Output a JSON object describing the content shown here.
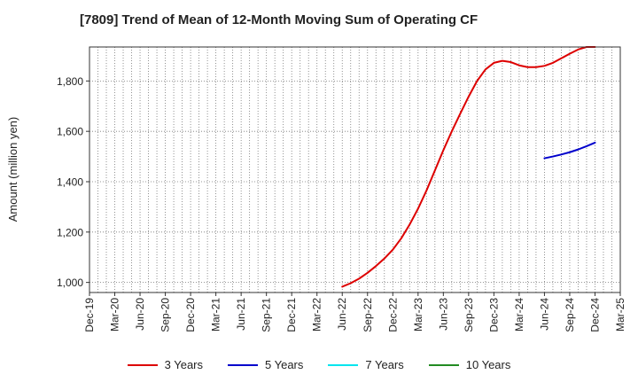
{
  "chart_data": {
    "type": "line",
    "title": "[7809]  Trend of Mean of 12-Month Moving Sum of Operating CF",
    "xlabel": "",
    "ylabel": "Amount (million yen)",
    "ylim": [
      960,
      1935
    ],
    "yticks": [
      1000,
      1200,
      1400,
      1600,
      1800
    ],
    "ytick_labels": [
      "1,000",
      "1,200",
      "1,400",
      "1,600",
      "1,800"
    ],
    "categories": [
      "Dec-19",
      "Mar-20",
      "Jun-20",
      "Sep-20",
      "Dec-20",
      "Mar-21",
      "Jun-21",
      "Sep-21",
      "Dec-21",
      "Mar-22",
      "Jun-22",
      "Sep-22",
      "Dec-22",
      "Mar-23",
      "Jun-23",
      "Sep-23",
      "Dec-23",
      "Mar-24",
      "Jun-24",
      "Sep-24",
      "Dec-24",
      "Mar-25"
    ],
    "grid": true,
    "legend_position": "bottom",
    "series": [
      {
        "name": "3 Years",
        "color": "#dd0000",
        "x": [
          30,
          31,
          32,
          33,
          34,
          35,
          36,
          37,
          38,
          39,
          40,
          41,
          42,
          43,
          44,
          45,
          46,
          47,
          48,
          49,
          50,
          51,
          52,
          53,
          54,
          55,
          56,
          57,
          58,
          59,
          60
        ],
        "values": [
          983,
          997,
          1015,
          1038,
          1065,
          1095,
          1130,
          1175,
          1230,
          1293,
          1365,
          1445,
          1525,
          1600,
          1670,
          1738,
          1800,
          1846,
          1872,
          1880,
          1875,
          1862,
          1855,
          1855,
          1860,
          1872,
          1890,
          1908,
          1925,
          1935,
          1935
        ]
      },
      {
        "name": "5 Years",
        "color": "#0000cc",
        "x": [
          54,
          55,
          56,
          57,
          58,
          59,
          60
        ],
        "values": [
          1493,
          1500,
          1508,
          1517,
          1528,
          1541,
          1555
        ]
      },
      {
        "name": "7 Years",
        "color": "#00e5ee",
        "x": [],
        "values": []
      },
      {
        "name": "10 Years",
        "color": "#228b22",
        "x": [],
        "values": []
      }
    ]
  }
}
